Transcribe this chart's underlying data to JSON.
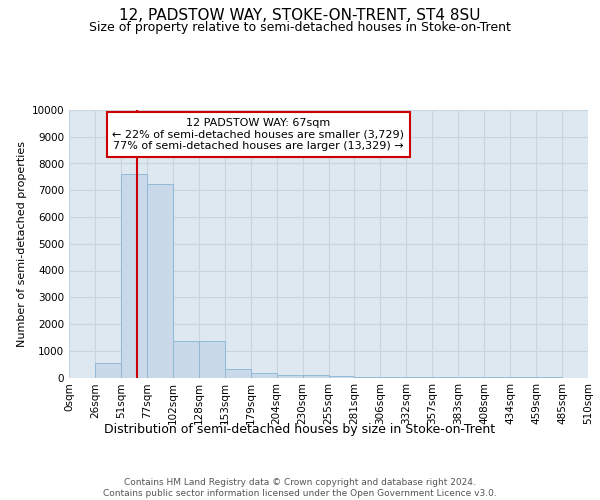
{
  "title": "12, PADSTOW WAY, STOKE-ON-TRENT, ST4 8SU",
  "subtitle": "Size of property relative to semi-detached houses in Stoke-on-Trent",
  "xlabel": "Distribution of semi-detached houses by size in Stoke-on-Trent",
  "ylabel": "Number of semi-detached properties",
  "footnote": "Contains HM Land Registry data © Crown copyright and database right 2024.\nContains public sector information licensed under the Open Government Licence v3.0.",
  "bin_labels": [
    "0sqm",
    "26sqm",
    "51sqm",
    "77sqm",
    "102sqm",
    "128sqm",
    "153sqm",
    "179sqm",
    "204sqm",
    "230sqm",
    "255sqm",
    "281sqm",
    "306sqm",
    "332sqm",
    "357sqm",
    "383sqm",
    "408sqm",
    "434sqm",
    "459sqm",
    "485sqm",
    "510sqm"
  ],
  "bar_heights": [
    0,
    550,
    7600,
    7250,
    1350,
    1350,
    310,
    150,
    110,
    80,
    50,
    30,
    20,
    10,
    5,
    3,
    2,
    1,
    1,
    0
  ],
  "bar_color": "#c9d9ea",
  "bar_edge_color": "#8ab4d4",
  "property_value": 67,
  "property_label": "12 PADSTOW WAY: 67sqm",
  "pct_smaller": 22,
  "n_smaller": 3729,
  "pct_larger": 77,
  "n_larger": 13329,
  "annotation_box_color": "#ffffff",
  "annotation_box_edge_color": "#cc0000",
  "vline_color": "#cc0000",
  "ylim": [
    0,
    10000
  ],
  "yticks": [
    0,
    1000,
    2000,
    3000,
    4000,
    5000,
    6000,
    7000,
    8000,
    9000,
    10000
  ],
  "grid_color": "#c8d4e0",
  "bg_color": "#dde8f0",
  "fig_bg_color": "#ffffff",
  "title_fontsize": 11,
  "subtitle_fontsize": 9,
  "xlabel_fontsize": 9,
  "ylabel_fontsize": 8,
  "tick_fontsize": 7.5,
  "footnote_fontsize": 6.5,
  "annot_fontsize": 8
}
